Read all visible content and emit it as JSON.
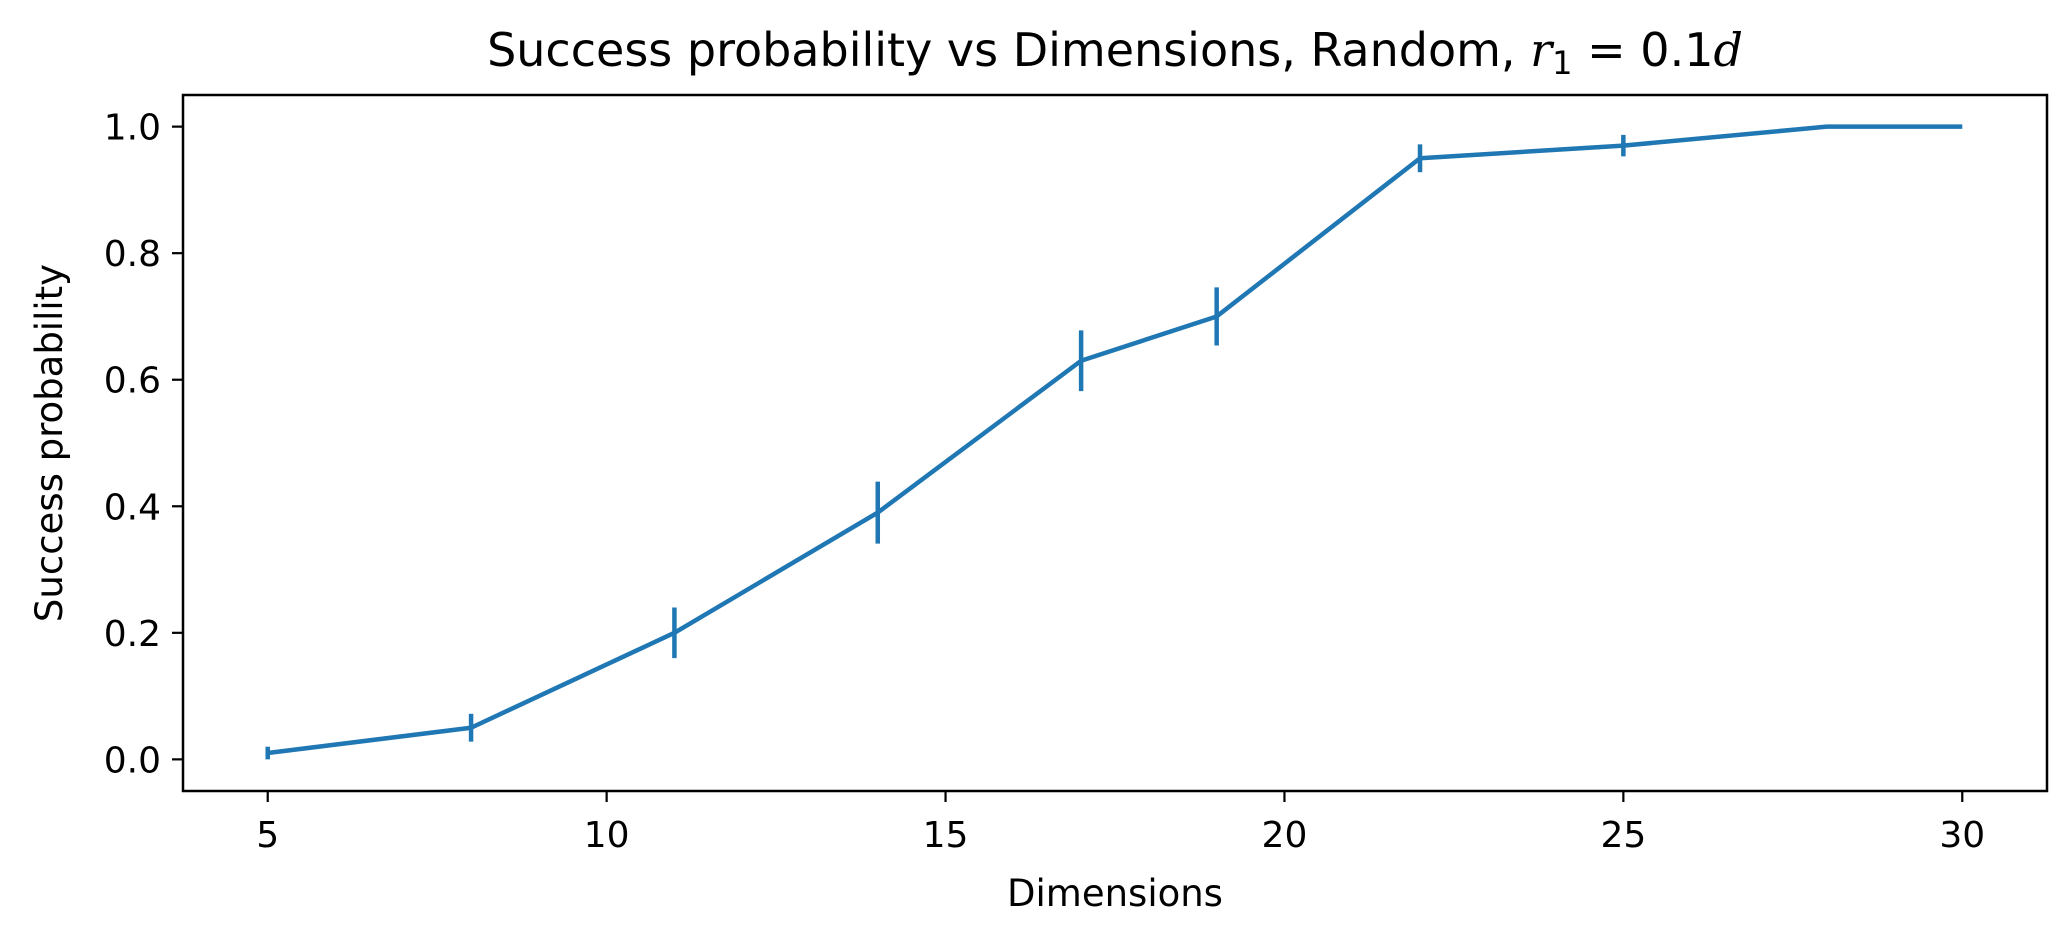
{
  "chart_data": {
    "type": "line",
    "title": "Success probability vs Dimensions, Random, ",
    "title_math": {
      "var": "r",
      "sub": "1",
      "rhs": " = 0.1",
      "rhs_var": "d"
    },
    "xlabel": "Dimensions",
    "ylabel": "Success probability",
    "xlim": [
      3.75,
      31.25
    ],
    "ylim": [
      -0.05,
      1.05
    ],
    "xticks": [
      5,
      10,
      15,
      20,
      25,
      30
    ],
    "yticks": [
      0.0,
      0.2,
      0.4,
      0.6,
      0.8,
      1.0
    ],
    "ytick_labels": [
      "0.0",
      "0.2",
      "0.4",
      "0.6",
      "0.8",
      "1.0"
    ],
    "grid": false,
    "series": [
      {
        "color": "#1f77b4",
        "x": [
          5,
          8,
          11,
          14,
          17,
          19,
          22,
          25,
          28,
          30
        ],
        "y": [
          0.01,
          0.05,
          0.2,
          0.39,
          0.63,
          0.7,
          0.95,
          0.97,
          1.0,
          1.0
        ],
        "yerr": [
          0.01,
          0.022,
          0.04,
          0.049,
          0.048,
          0.046,
          0.022,
          0.017,
          0.0,
          0.0
        ]
      }
    ]
  }
}
